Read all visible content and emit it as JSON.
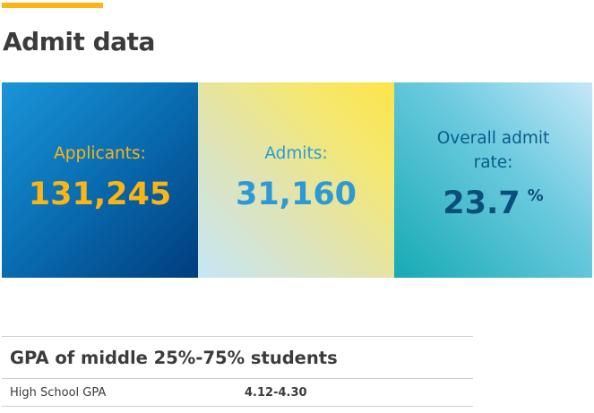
{
  "page": {
    "title": "Admit data",
    "accent_color": "#fdb515"
  },
  "stats": {
    "applicants": {
      "label": "Applicants:",
      "value": "131,245"
    },
    "admits": {
      "label": "Admits:",
      "value": "31,160"
    },
    "admit_rate": {
      "label": "Overall admit rate:",
      "value": "23.7",
      "unit": "%"
    }
  },
  "gpa": {
    "heading": "GPA of middle 25%-75% students",
    "rows": [
      {
        "label": "High School GPA",
        "value": "4.12-4.30"
      }
    ]
  }
}
